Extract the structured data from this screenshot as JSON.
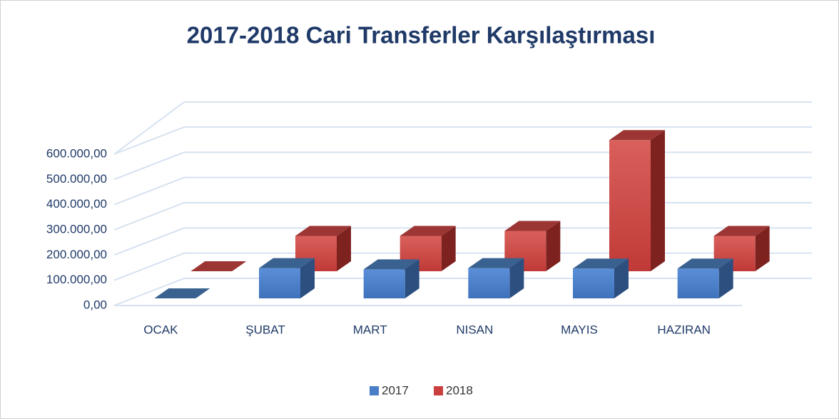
{
  "chart_data": {
    "type": "bar3d",
    "title": "2017-2018 Cari Transferler Karşılaştırması",
    "categories": [
      "OCAK",
      "ŞUBAT",
      "MART",
      "NISAN",
      "MAYIS",
      "HAZIRAN"
    ],
    "series": [
      {
        "name": "2017",
        "color": "#4a7fc8",
        "values": [
          0,
          120000,
          115000,
          120000,
          118000,
          118000
        ]
      },
      {
        "name": "2018",
        "color": "#c9403e",
        "values": [
          0,
          140000,
          140000,
          160000,
          520000,
          140000
        ]
      }
    ],
    "ylim": [
      0,
      600000
    ],
    "yticks": [
      {
        "value": 0,
        "label": "0,00"
      },
      {
        "value": 100000,
        "label": "100.000,00"
      },
      {
        "value": 200000,
        "label": "200.000,00"
      },
      {
        "value": 300000,
        "label": "300.000,00"
      },
      {
        "value": 400000,
        "label": "400.000,00"
      },
      {
        "value": 500000,
        "label": "500.000,00"
      },
      {
        "value": 600000,
        "label": "600.000,00"
      }
    ],
    "grid": true,
    "legend": "bottom"
  }
}
